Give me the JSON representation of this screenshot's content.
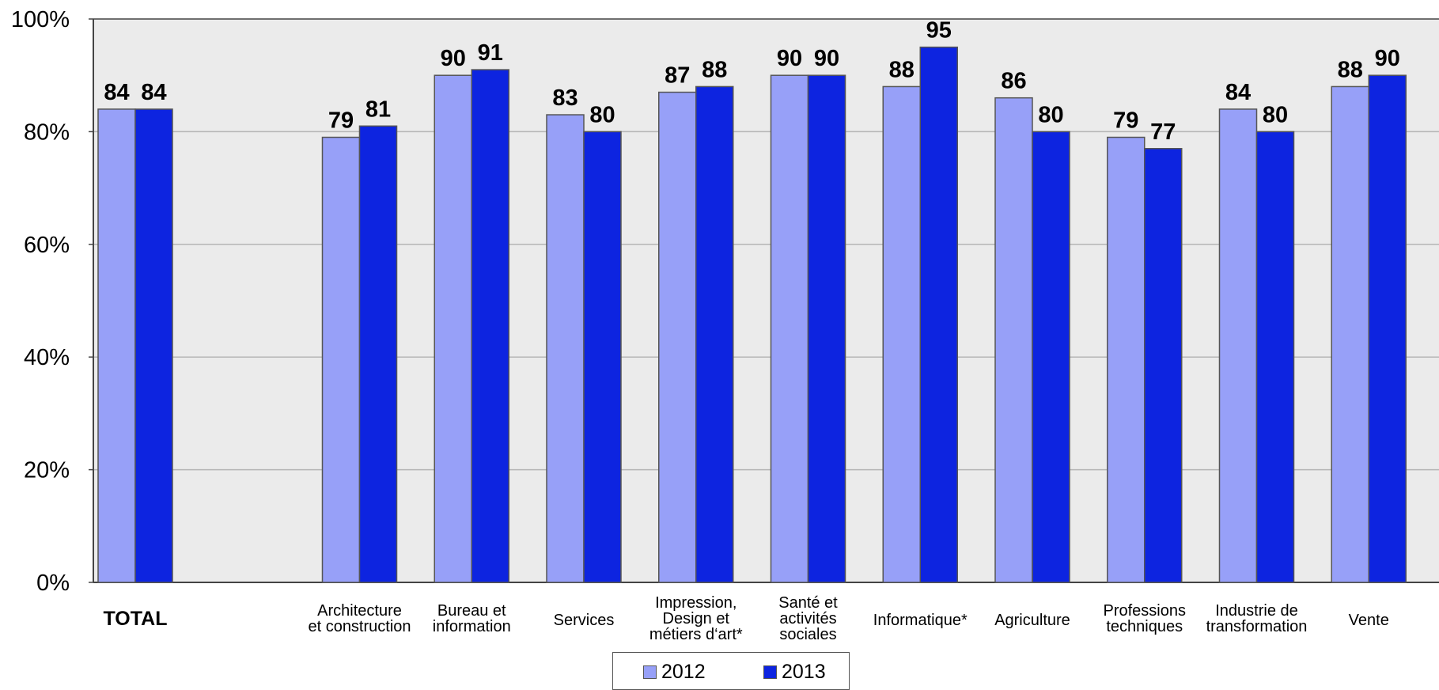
{
  "chart_data": {
    "type": "bar",
    "title": "",
    "xlabel": "",
    "ylabel": "",
    "ylim": [
      0,
      100
    ],
    "yticks": [
      "0%",
      "20%",
      "40%",
      "60%",
      "80%",
      "100%"
    ],
    "ytick_values": [
      0,
      20,
      40,
      60,
      80,
      100
    ],
    "grid": true,
    "legend_position": "bottom-center",
    "categories": [
      [
        "TOTAL"
      ],
      [],
      [
        "Architecture",
        "et construction"
      ],
      [
        "Bureau et",
        "information"
      ],
      [
        "Services"
      ],
      [
        "Impression,",
        "Design et",
        "métiers d‘art*"
      ],
      [
        "Santé et",
        "activités",
        "sociales"
      ],
      [
        "Informatique*"
      ],
      [
        "Agriculture"
      ],
      [
        "Professions",
        "techniques"
      ],
      [
        "Industrie de",
        "transformation"
      ],
      [
        "Vente"
      ]
    ],
    "series": [
      {
        "name": "2012",
        "color": "#97a0f8",
        "values": [
          84,
          null,
          79,
          90,
          83,
          87,
          90,
          88,
          86,
          79,
          84,
          88
        ]
      },
      {
        "name": "2013",
        "color": "#0d24e0",
        "values": [
          84,
          null,
          81,
          91,
          80,
          88,
          90,
          95,
          80,
          77,
          80,
          90
        ]
      }
    ],
    "plot_background": "#ebebeb",
    "gridline_color": "#b5b5b5"
  },
  "legend": {
    "items": [
      {
        "label": "2012",
        "color": "#97a0f8"
      },
      {
        "label": "2013",
        "color": "#0d24e0"
      }
    ]
  }
}
